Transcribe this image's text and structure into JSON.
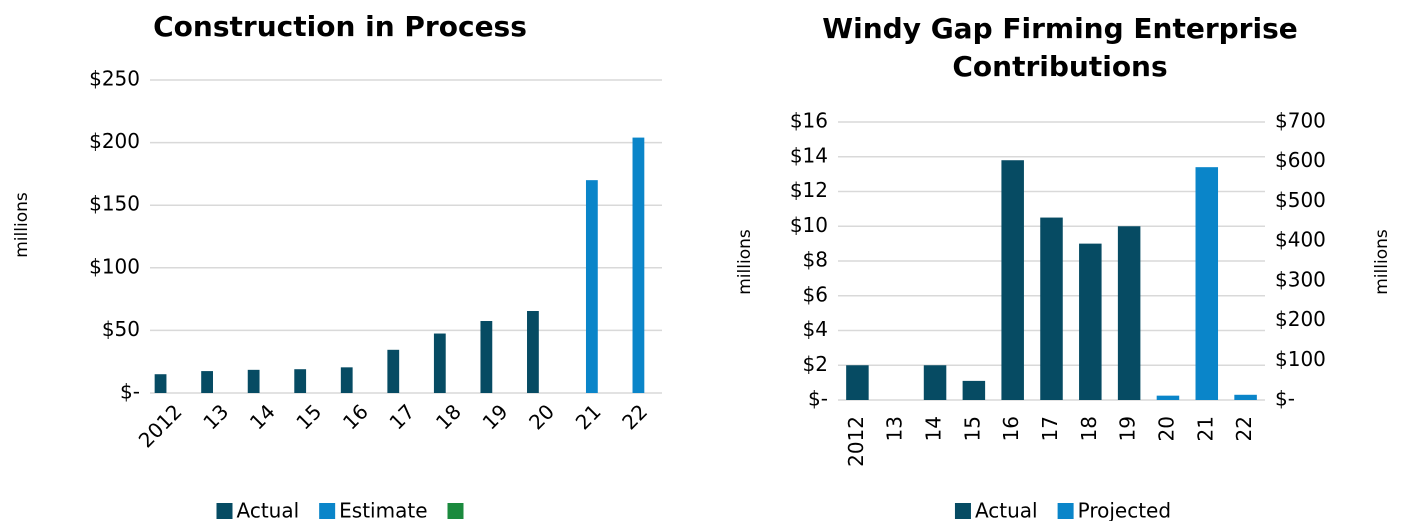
{
  "chart_data": [
    {
      "type": "bar",
      "title": "Construction in Process",
      "ylabel": "millions",
      "categories": [
        "2012",
        "13",
        "14",
        "15",
        "16",
        "17",
        "18",
        "19",
        "20",
        "21",
        "22"
      ],
      "series": [
        {
          "name": "Actual",
          "color": "#064b63",
          "values": [
            15,
            17.5,
            18.5,
            19,
            20.5,
            34.5,
            47.5,
            57.5,
            65.5,
            null,
            null
          ]
        },
        {
          "name": "Estimate",
          "color": "#0a85c9",
          "values": [
            null,
            null,
            null,
            null,
            null,
            null,
            null,
            null,
            null,
            170,
            204
          ]
        },
        {
          "color": "#1b8a3e",
          "values": [
            null,
            null,
            null,
            null,
            null,
            null,
            null,
            null,
            null,
            null,
            null
          ]
        }
      ],
      "ylim": [
        0,
        250
      ],
      "yticks": [
        {
          "value": 0,
          "label": "$-"
        },
        {
          "value": 50,
          "label": "$50"
        },
        {
          "value": 100,
          "label": "$100"
        },
        {
          "value": 150,
          "label": "$150"
        },
        {
          "value": 200,
          "label": "$200"
        },
        {
          "value": 250,
          "label": "$250"
        }
      ],
      "grid": true,
      "legend": "bottom"
    },
    {
      "type": "bar",
      "title": "Windy Gap Firming Enterprise Contributions",
      "ylabel": "millions",
      "y2label": "millions",
      "categories": [
        "2012",
        "13",
        "14",
        "15",
        "16",
        "17",
        "18",
        "19",
        "20",
        "21",
        "22"
      ],
      "series": [
        {
          "name": "Actual",
          "color": "#064b63",
          "values": [
            2,
            null,
            2,
            1.1,
            13.8,
            10.5,
            9,
            10,
            null,
            null,
            null
          ]
        },
        {
          "name": "Projected",
          "color": "#0a85c9",
          "values": [
            null,
            null,
            null,
            null,
            null,
            null,
            null,
            null,
            0.25,
            13.4,
            0.3
          ]
        }
      ],
      "ylim": [
        0,
        16
      ],
      "yticks": [
        {
          "value": 0,
          "label": "$-"
        },
        {
          "value": 2,
          "label": "$2"
        },
        {
          "value": 4,
          "label": "$4"
        },
        {
          "value": 6,
          "label": "$6"
        },
        {
          "value": 8,
          "label": "$8"
        },
        {
          "value": 10,
          "label": "$10"
        },
        {
          "value": 12,
          "label": "$12"
        },
        {
          "value": 14,
          "label": "$14"
        },
        {
          "value": 16,
          "label": "$16"
        }
      ],
      "y2lim": [
        0,
        700
      ],
      "y2ticks": [
        {
          "value": 0,
          "label": "$-"
        },
        {
          "value": 100,
          "label": "$100"
        },
        {
          "value": 200,
          "label": "$200"
        },
        {
          "value": 300,
          "label": "$300"
        },
        {
          "value": 400,
          "label": "$400"
        },
        {
          "value": 500,
          "label": "$500"
        },
        {
          "value": 600,
          "label": "$600"
        },
        {
          "value": 700,
          "label": "$700"
        }
      ],
      "grid": true,
      "legend": "bottom"
    }
  ]
}
